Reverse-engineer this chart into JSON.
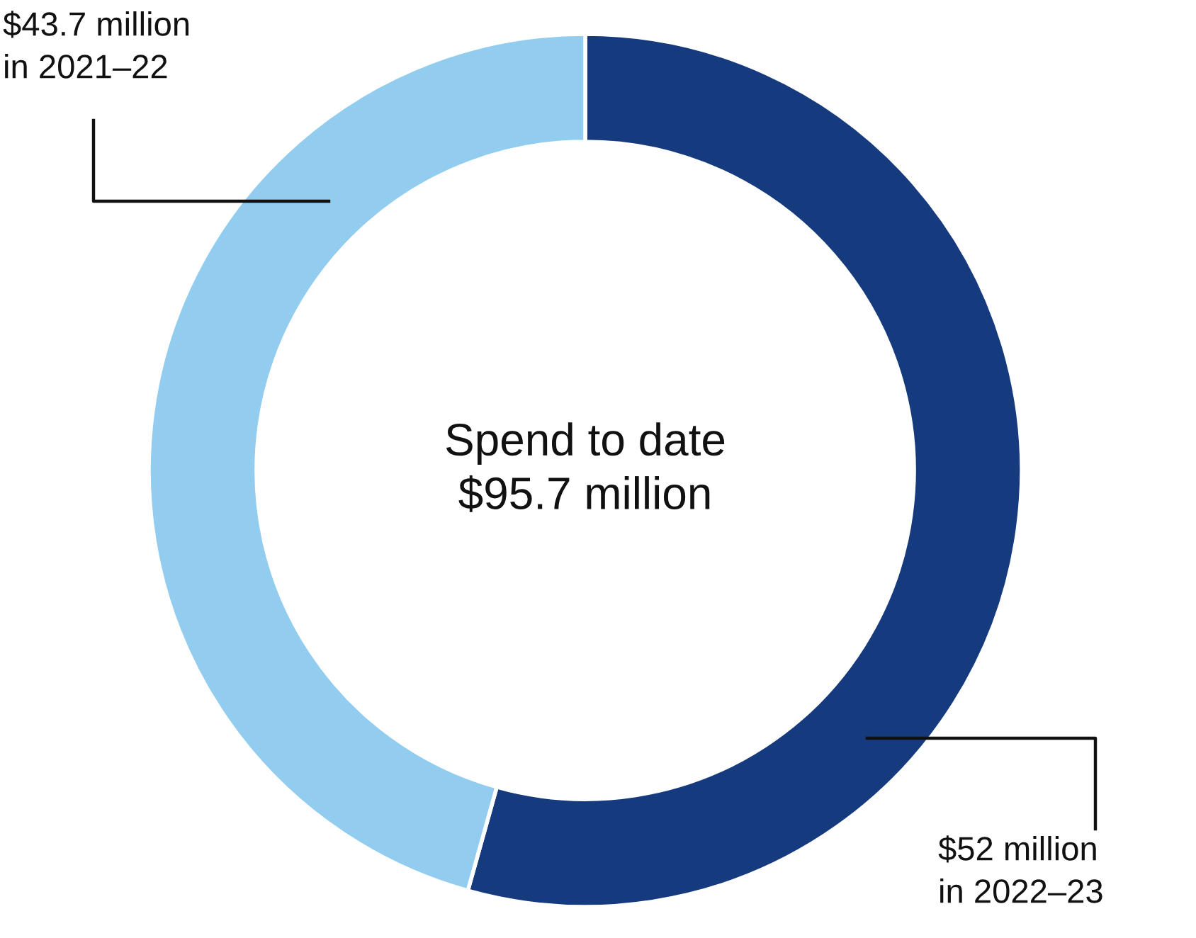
{
  "chart_data": {
    "type": "donut",
    "categories": [
      "in 2022–23",
      "in 2021–22"
    ],
    "values": [
      52,
      43.7
    ],
    "colors": [
      "#163a7e",
      "#92cdf0"
    ],
    "value_labels": [
      "$52 million",
      "$43.7 million"
    ],
    "annotations": [
      "Spend to date\n$95.7 million"
    ],
    "legend": false
  }
}
